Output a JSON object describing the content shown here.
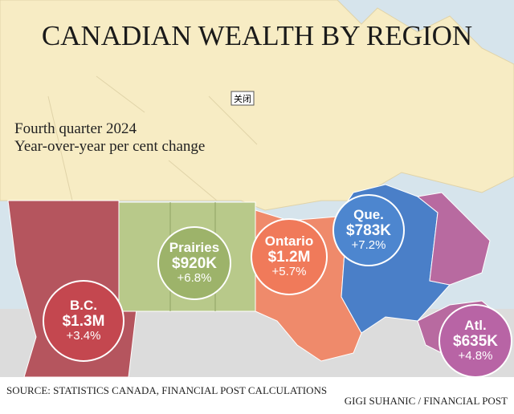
{
  "header": {
    "title": "CANADIAN WEALTH BY REGION",
    "subtitle": [
      "Fourth quarter 2024",
      "Year-over-year per cent change"
    ],
    "close_button": "关闭"
  },
  "regions": [
    {
      "name": "B.C.",
      "value": "$1.3M",
      "change": "+3.4%"
    },
    {
      "name": "Prairies",
      "value": "$920K",
      "change": "+6.8%"
    },
    {
      "name": "Ontario",
      "value": "$1.2M",
      "change": "+5.7%"
    },
    {
      "name": "Que.",
      "value": "$783K",
      "change": "+7.2%"
    },
    {
      "name": "Atl.",
      "value": "$635K",
      "change": "+4.8%"
    }
  ],
  "footer": {
    "source": "SOURCE: STATISTICS CANADA, FINANCIAL POST CALCULATIONS",
    "credit": "GIGI SUHANIC / FINANCIAL POST"
  }
}
